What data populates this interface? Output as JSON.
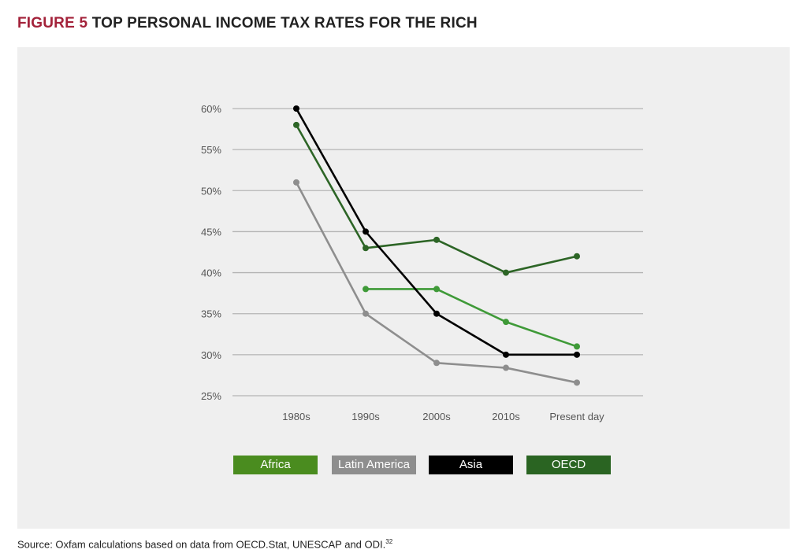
{
  "header": {
    "figure_label": "FIGURE 5",
    "title": "TOP PERSONAL INCOME TAX RATES FOR THE RICH"
  },
  "source": {
    "text": "Source: Oxfam calculations based on data from OECD.Stat, UNESCAP and ODI.",
    "footnote": "32"
  },
  "chart_data": {
    "type": "line",
    "title": "TOP PERSONAL INCOME TAX RATES FOR THE RICH",
    "xlabel": "",
    "ylabel": "",
    "categories": [
      "1980s",
      "1990s",
      "2000s",
      "2010s",
      "Present day"
    ],
    "ylim": [
      25,
      60
    ],
    "yticks": [
      25,
      30,
      35,
      40,
      45,
      50,
      55,
      60
    ],
    "ytick_labels": [
      "25%",
      "30%",
      "35%",
      "40%",
      "45%",
      "50%",
      "55%",
      "60%"
    ],
    "grid": true,
    "legend_position": "bottom",
    "series": [
      {
        "name": "Africa",
        "color": "#3f9a38",
        "legend_color": "#4a8c1f",
        "values": [
          null,
          38,
          38,
          34,
          31
        ]
      },
      {
        "name": "Latin America",
        "color": "#8e8e8e",
        "legend_color": "#8e8e8e",
        "values": [
          51,
          35,
          29,
          28.4,
          26.6
        ]
      },
      {
        "name": "Asia",
        "color": "#000000",
        "legend_color": "#000000",
        "values": [
          60,
          45,
          35,
          30,
          30
        ]
      },
      {
        "name": "OECD",
        "color": "#2d6526",
        "legend_color": "#2a6422",
        "values": [
          58,
          43,
          44,
          40,
          42
        ]
      }
    ]
  }
}
